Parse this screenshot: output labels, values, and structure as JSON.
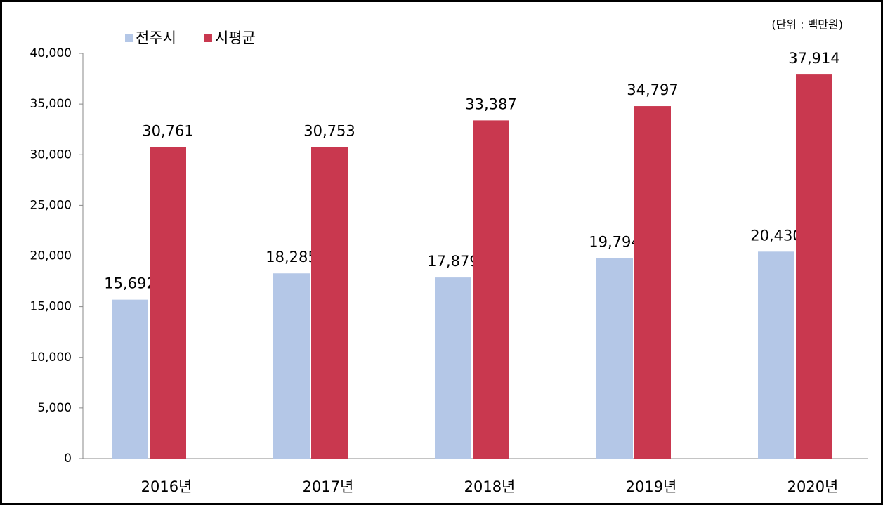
{
  "chart_data": {
    "type": "bar",
    "unit_note": "(단위 : 백만원)",
    "categories": [
      "2016년",
      "2017년",
      "2018년",
      "2019년",
      "2020년"
    ],
    "series": [
      {
        "name": "전주시",
        "color": "#b4c7e7",
        "values": [
          15692,
          18285,
          17879,
          19794,
          20430
        ],
        "value_labels": [
          "15,692",
          "18,285",
          "17,879",
          "19,794",
          "20,430"
        ]
      },
      {
        "name": "시평균",
        "color": "#c9384f",
        "values": [
          30761,
          30753,
          33387,
          34797,
          37914
        ],
        "value_labels": [
          "30,761",
          "30,753",
          "33,387",
          "34,797",
          "37,914"
        ]
      }
    ],
    "ylim": [
      0,
      40000
    ],
    "yticks": [
      0,
      {
        "value": 5000,
        "label": "5,000"
      },
      {
        "value": 10000,
        "label": "10,000"
      },
      {
        "value": 15000,
        "label": "15,000"
      },
      {
        "value": 20000,
        "label": "20,000"
      },
      {
        "value": 25000,
        "label": "25,000"
      },
      {
        "value": 30000,
        "label": "30,000"
      },
      {
        "value": 35000,
        "label": "35,000"
      },
      {
        "value": 40000,
        "label": "40,000"
      }
    ],
    "legend": "top-left",
    "grid": false
  }
}
